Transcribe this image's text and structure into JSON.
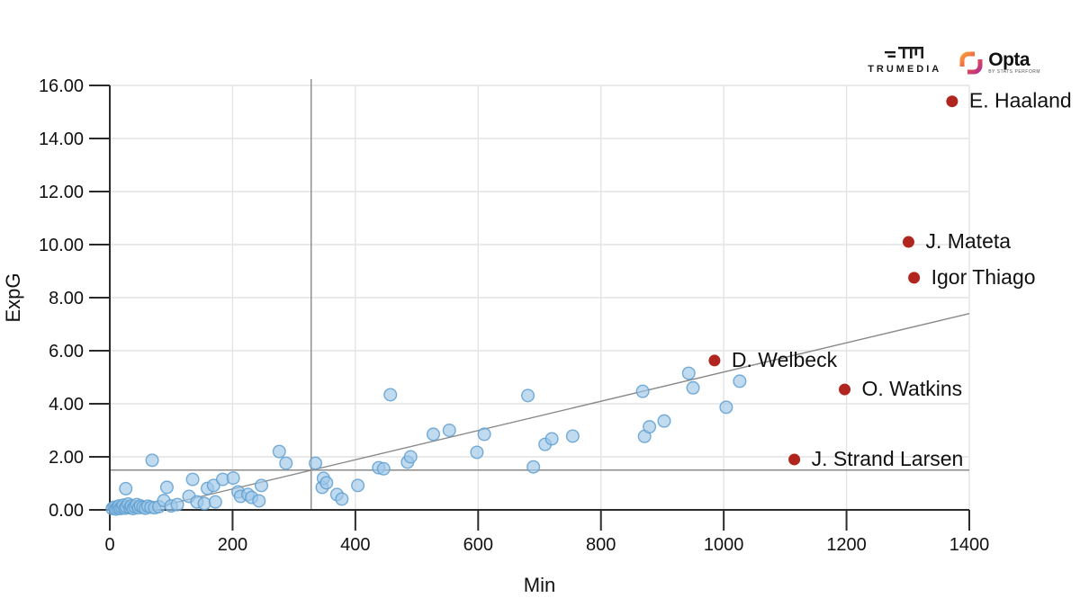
{
  "branding": {
    "trumedia": "TRUMEDIA",
    "opta_name": "Opta",
    "opta_sub": "BY STATS PERFORM"
  },
  "chart_data": {
    "type": "scatter",
    "title": "",
    "xlabel": "Min",
    "ylabel": "ExpG",
    "xlim": [
      0,
      1400
    ],
    "ylim": [
      0,
      16
    ],
    "grid": true,
    "x_ticks": [
      {
        "v": 0,
        "label": "0"
      },
      {
        "v": 200,
        "label": "200"
      },
      {
        "v": 400,
        "label": "400"
      },
      {
        "v": 600,
        "label": "600"
      },
      {
        "v": 800,
        "label": "800"
      },
      {
        "v": 1000,
        "label": "1000"
      },
      {
        "v": 1200,
        "label": "1200"
      },
      {
        "v": 1400,
        "label": "1400"
      }
    ],
    "y_ticks": [
      {
        "v": 0,
        "label": "0.00"
      },
      {
        "v": 2,
        "label": "2.00"
      },
      {
        "v": 4,
        "label": "4.00"
      },
      {
        "v": 6,
        "label": "6.00"
      },
      {
        "v": 8,
        "label": "8.00"
      },
      {
        "v": 10,
        "label": "10.00"
      },
      {
        "v": 12,
        "label": "12.00"
      },
      {
        "v": 14,
        "label": "14.00"
      },
      {
        "v": 16,
        "label": "16.00"
      }
    ],
    "reference_lines": {
      "vertical_x": 328,
      "horizontal_y": 1.5
    },
    "trend_line": {
      "x1": 57,
      "y1": 0,
      "x2": 1400,
      "y2": 7.4
    },
    "colors": {
      "point_fill": "#9ec8e8",
      "point_stroke": "#5f9fd0",
      "highlight": "#b1251f",
      "grid": "#e4e4e4",
      "axis": "#2b2b2b",
      "reference": "#8a8a8a",
      "text": "#111111"
    },
    "points": [
      {
        "x": 4,
        "y": 0.05
      },
      {
        "x": 7,
        "y": 0.1
      },
      {
        "x": 10,
        "y": 0.03
      },
      {
        "x": 13,
        "y": 0.08
      },
      {
        "x": 15,
        "y": 0.15
      },
      {
        "x": 17,
        "y": 0.05
      },
      {
        "x": 20,
        "y": 0.1
      },
      {
        "x": 22,
        "y": 0.18
      },
      {
        "x": 25,
        "y": 0.06
      },
      {
        "x": 26,
        "y": 0.8
      },
      {
        "x": 27,
        "y": 0.12
      },
      {
        "x": 30,
        "y": 0.22
      },
      {
        "x": 33,
        "y": 0.08
      },
      {
        "x": 35,
        "y": 0.15
      },
      {
        "x": 38,
        "y": 0.05
      },
      {
        "x": 41,
        "y": 0.12
      },
      {
        "x": 44,
        "y": 0.2
      },
      {
        "x": 47,
        "y": 0.08
      },
      {
        "x": 50,
        "y": 0.15
      },
      {
        "x": 54,
        "y": 0.1
      },
      {
        "x": 58,
        "y": 0.06
      },
      {
        "x": 62,
        "y": 0.14
      },
      {
        "x": 67,
        "y": 0.1
      },
      {
        "x": 69,
        "y": 1.87
      },
      {
        "x": 73,
        "y": 0.08
      },
      {
        "x": 80,
        "y": 0.12
      },
      {
        "x": 88,
        "y": 0.35
      },
      {
        "x": 93,
        "y": 0.85
      },
      {
        "x": 100,
        "y": 0.15
      },
      {
        "x": 110,
        "y": 0.2
      },
      {
        "x": 129,
        "y": 0.51
      },
      {
        "x": 135,
        "y": 1.15
      },
      {
        "x": 142,
        "y": 0.3
      },
      {
        "x": 154,
        "y": 0.24
      },
      {
        "x": 159,
        "y": 0.81
      },
      {
        "x": 169,
        "y": 0.92
      },
      {
        "x": 172,
        "y": 0.3
      },
      {
        "x": 184,
        "y": 1.15
      },
      {
        "x": 201,
        "y": 1.2
      },
      {
        "x": 209,
        "y": 0.68
      },
      {
        "x": 213,
        "y": 0.51
      },
      {
        "x": 225,
        "y": 0.58
      },
      {
        "x": 231,
        "y": 0.47
      },
      {
        "x": 243,
        "y": 0.34
      },
      {
        "x": 247,
        "y": 0.92
      },
      {
        "x": 276,
        "y": 2.2
      },
      {
        "x": 287,
        "y": 1.76
      },
      {
        "x": 335,
        "y": 1.76
      },
      {
        "x": 346,
        "y": 0.85
      },
      {
        "x": 348,
        "y": 1.19
      },
      {
        "x": 353,
        "y": 1.02
      },
      {
        "x": 370,
        "y": 0.58
      },
      {
        "x": 378,
        "y": 0.41
      },
      {
        "x": 404,
        "y": 0.92
      },
      {
        "x": 438,
        "y": 1.59
      },
      {
        "x": 446,
        "y": 1.55
      },
      {
        "x": 457,
        "y": 4.34
      },
      {
        "x": 485,
        "y": 1.8
      },
      {
        "x": 490,
        "y": 2.0
      },
      {
        "x": 527,
        "y": 2.85
      },
      {
        "x": 553,
        "y": 3.0
      },
      {
        "x": 598,
        "y": 2.17
      },
      {
        "x": 610,
        "y": 2.85
      },
      {
        "x": 681,
        "y": 4.31
      },
      {
        "x": 690,
        "y": 1.62
      },
      {
        "x": 709,
        "y": 2.47
      },
      {
        "x": 720,
        "y": 2.68
      },
      {
        "x": 754,
        "y": 2.78
      },
      {
        "x": 868,
        "y": 4.47
      },
      {
        "x": 871,
        "y": 2.77
      },
      {
        "x": 879,
        "y": 3.13
      },
      {
        "x": 903,
        "y": 3.35
      },
      {
        "x": 943,
        "y": 5.15
      },
      {
        "x": 950,
        "y": 4.6
      },
      {
        "x": 1004,
        "y": 3.87
      },
      {
        "x": 1026,
        "y": 4.85
      }
    ],
    "labeled_points": [
      {
        "name": "E. Haaland",
        "x": 1372,
        "y": 15.4
      },
      {
        "name": "J. Mateta",
        "x": 1301,
        "y": 10.1
      },
      {
        "name": "Igor Thiago",
        "x": 1310,
        "y": 8.75
      },
      {
        "name": "D. Welbeck",
        "x": 985,
        "y": 5.63
      },
      {
        "name": "O. Watkins",
        "x": 1197,
        "y": 4.54
      },
      {
        "name": "J. Strand Larsen",
        "x": 1115,
        "y": 1.9
      }
    ]
  }
}
